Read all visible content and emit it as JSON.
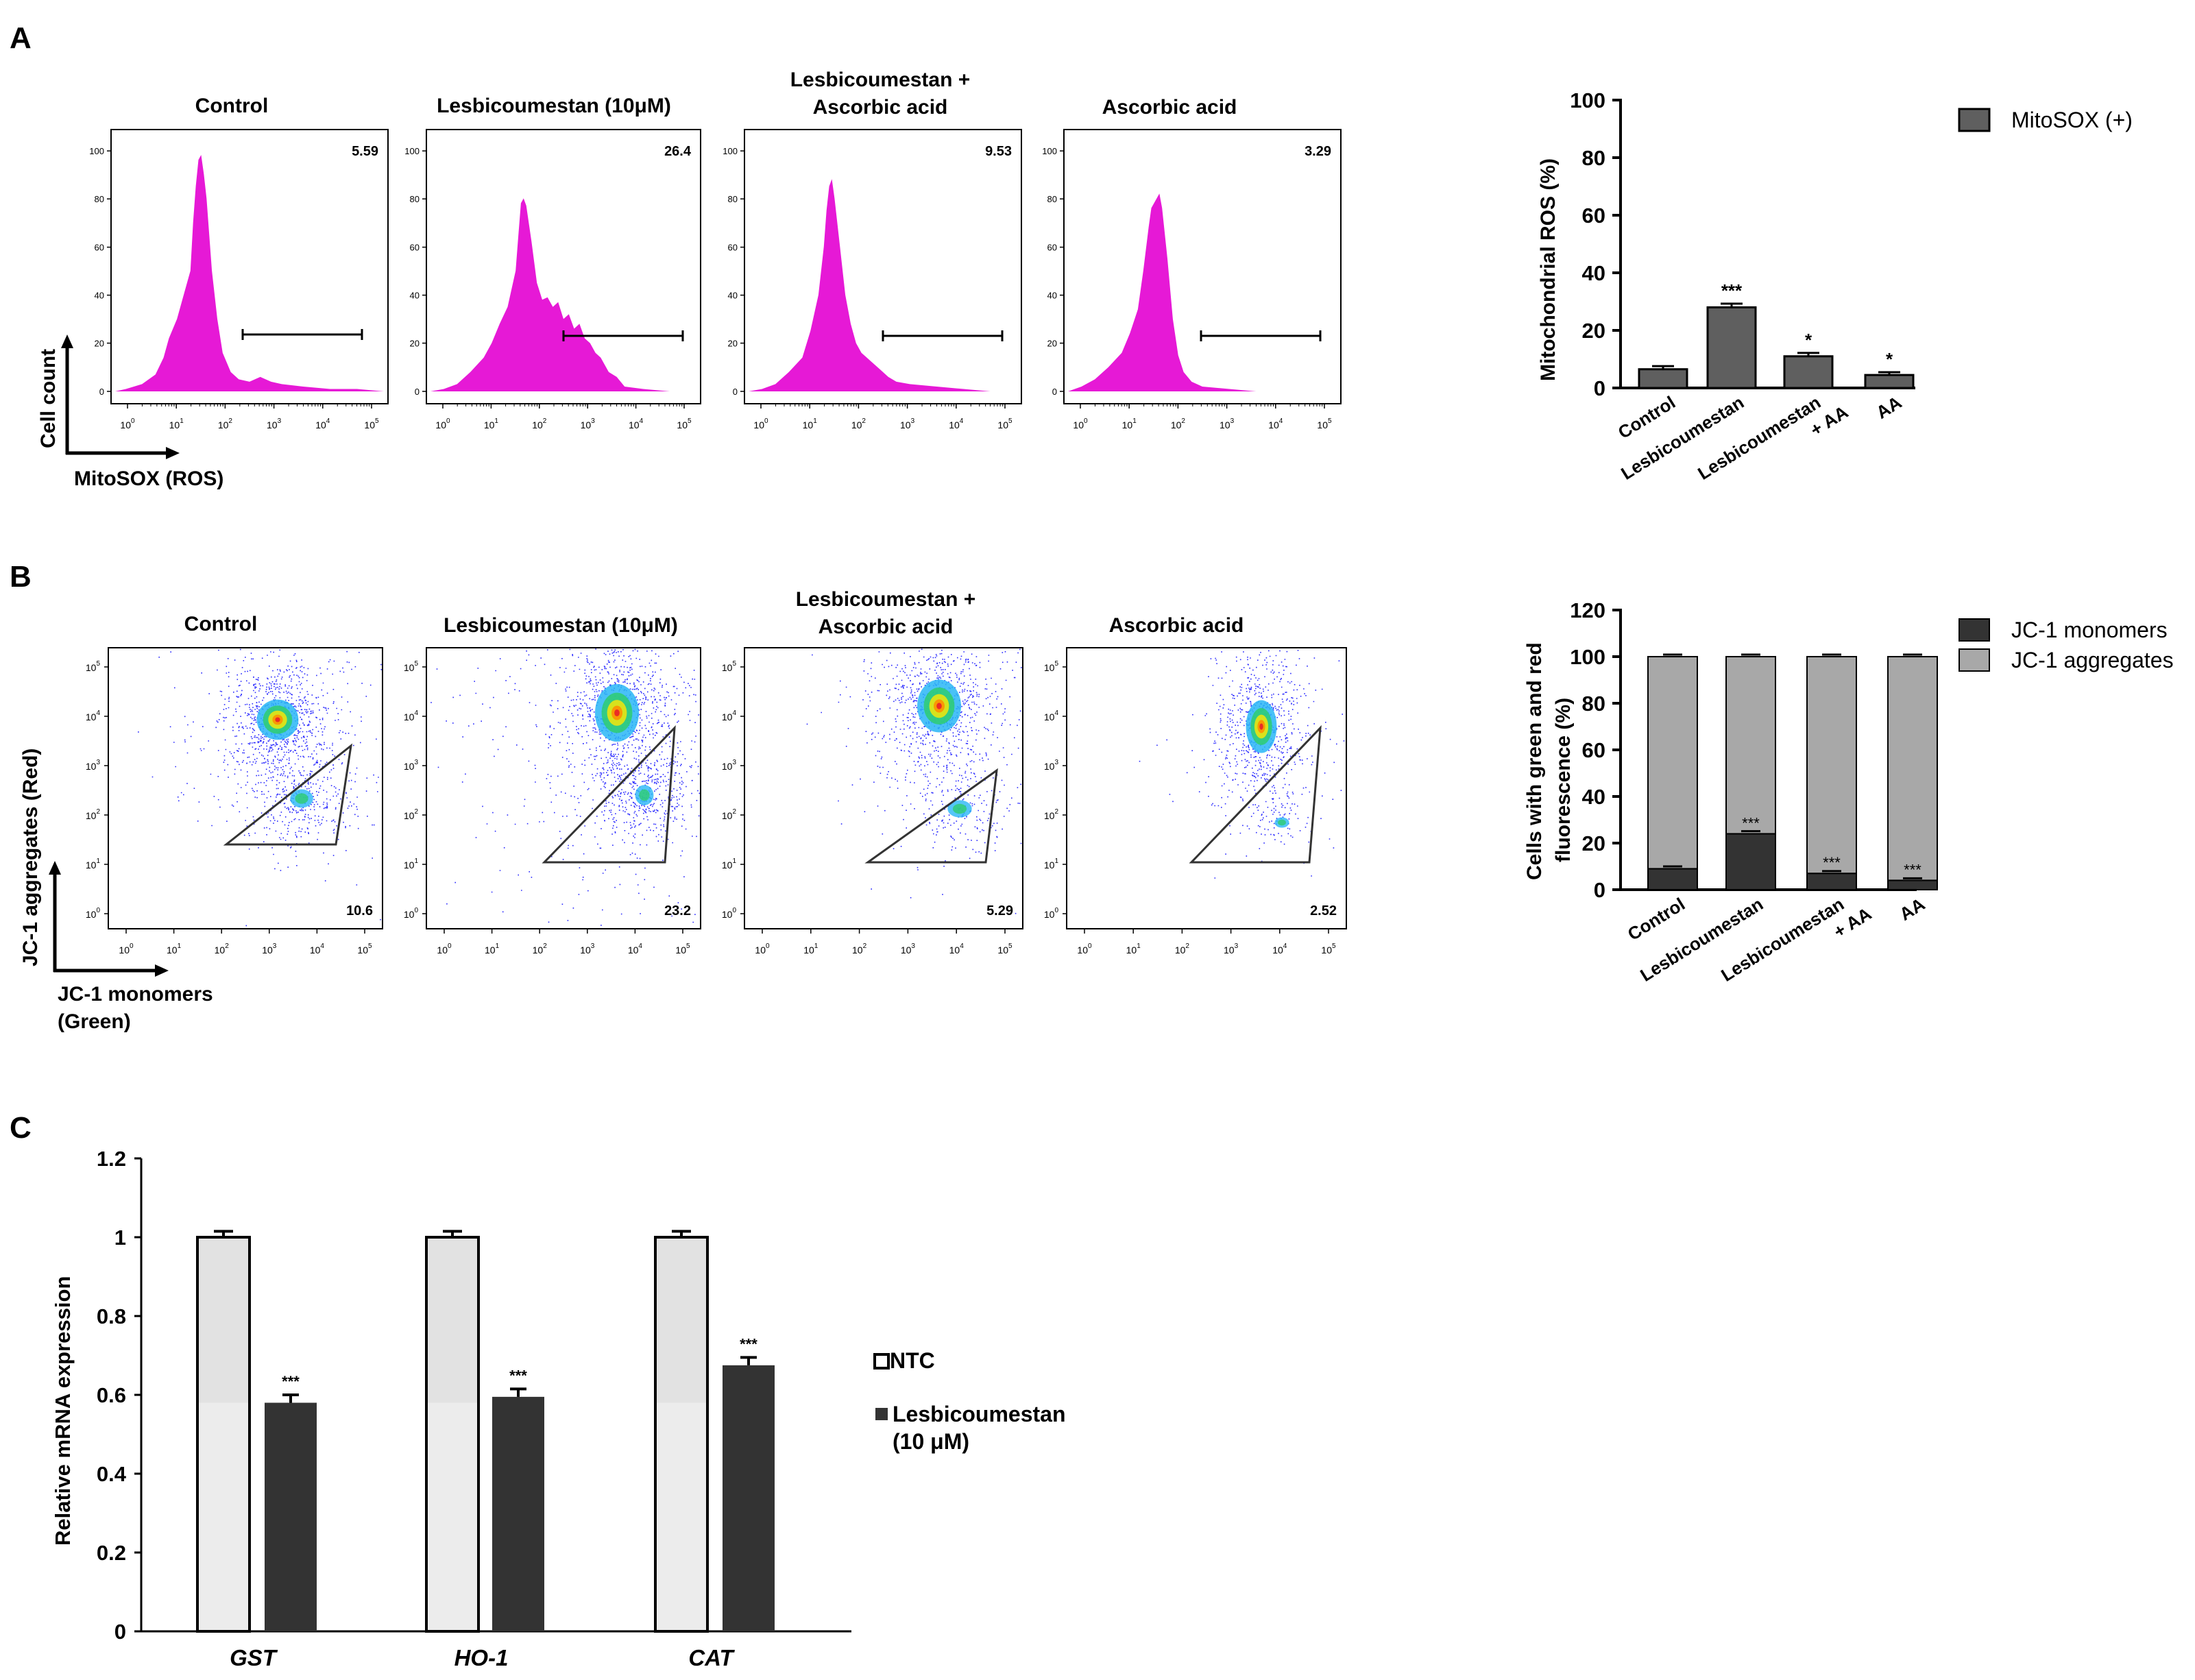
{
  "colors": {
    "histogram": "#e619d6",
    "bar_dark": "#5f5f5f",
    "jc_monomers": "#333333",
    "jc_aggregates": "#a8a8a8",
    "ntc": "#ececec",
    "lesbi": "#333333"
  },
  "panelA": {
    "letter": "A",
    "ylabel": "Cell count",
    "xlabel": "MitoSOX (ROS)",
    "panels": [
      {
        "title": [
          "Control"
        ],
        "value": "5.59"
      },
      {
        "title": [
          "Lesbicoumestan (10μM)"
        ],
        "value": "26.4"
      },
      {
        "title": [
          "Lesbicoumestan +",
          "Ascorbic acid"
        ],
        "value": "9.53"
      },
      {
        "title": [
          "Ascorbic acid"
        ],
        "value": "3.29"
      }
    ],
    "y_ticks": [
      "100",
      "80",
      "60",
      "40",
      "20",
      "0"
    ],
    "x_ticks": [
      "0",
      "1",
      "2",
      "3",
      "4",
      "5"
    ]
  },
  "panelB": {
    "letter": "B",
    "ylabel": "JC-1 aggregates (Red)",
    "xlabel": [
      "JC-1 monomers",
      "(Green)"
    ],
    "panels": [
      {
        "title": [
          "Control"
        ],
        "value": "10.6"
      },
      {
        "title": [
          "Lesbicoumestan (10μM)"
        ],
        "value": "23.2"
      },
      {
        "title": [
          "Lesbicoumestan +",
          "Ascorbic acid"
        ],
        "value": "5.29"
      },
      {
        "title": [
          "Ascorbic acid"
        ],
        "value": "2.52"
      }
    ],
    "y_ticks": [
      "5",
      "4",
      "3",
      "2",
      "1",
      "0"
    ],
    "x_ticks": [
      "0",
      "1",
      "2",
      "3",
      "4",
      "5"
    ]
  },
  "panelC": {
    "letter": "C"
  },
  "chart_data": [
    {
      "type": "bar",
      "panel": "A",
      "ylabel": "Mitochondrial ROS (%)",
      "categories": [
        "Control",
        "Lesbicoumestan",
        "Lesbicoumestan\n+ AA",
        "AA"
      ],
      "series": [
        {
          "name": "MitoSOX (+)",
          "values": [
            6.5,
            28,
            11,
            4.5
          ],
          "errors": [
            0.6,
            0.8,
            0.7,
            0.5
          ]
        }
      ],
      "annotations": [
        "",
        "***",
        "*",
        "*"
      ],
      "ylim": [
        0,
        100
      ],
      "yticks": [
        0,
        20,
        40,
        60,
        80,
        100
      ],
      "legend": "top-right"
    },
    {
      "type": "bar",
      "panel": "B",
      "stacked": true,
      "ylabel": "Cells with green and red\nfluorescence (%)",
      "categories": [
        "Control",
        "Lesbicoumestan",
        "Lesbicoumestan\n+ AA",
        "AA"
      ],
      "series": [
        {
          "name": "JC-1 monomers",
          "values": [
            9,
            24,
            7,
            4
          ],
          "errors": [
            0.7,
            0.8,
            0.7,
            0.6
          ]
        },
        {
          "name": "JC-1 aggregates",
          "values": [
            91,
            76,
            93,
            96
          ],
          "errors": [
            0.6,
            0.6,
            0.6,
            0.6
          ]
        }
      ],
      "annotations": [
        "",
        "***",
        "***",
        "***"
      ],
      "ylim": [
        0,
        120
      ],
      "yticks": [
        0,
        20,
        40,
        60,
        80,
        100,
        120
      ],
      "legend": "top-right"
    },
    {
      "type": "bar",
      "panel": "C",
      "ylabel": "Relative mRNA expression",
      "categories": [
        "GST",
        "HO-1",
        "CAT"
      ],
      "series": [
        {
          "name": "NTC",
          "values": [
            1,
            1,
            1
          ],
          "errors": [
            0.015,
            0.015,
            0.015
          ]
        },
        {
          "name": "Lesbicoumestan\n(10 μM)",
          "values": [
            0.58,
            0.595,
            0.675
          ],
          "errors": [
            0.02,
            0.02,
            0.02
          ]
        }
      ],
      "annotations": [
        "***",
        "***",
        "***"
      ],
      "ylim": [
        0,
        1.2
      ],
      "yticks": [
        "0",
        "0.2",
        "0.4",
        "0.6",
        "0.8",
        "1",
        "1.2"
      ],
      "legend": "right"
    }
  ]
}
